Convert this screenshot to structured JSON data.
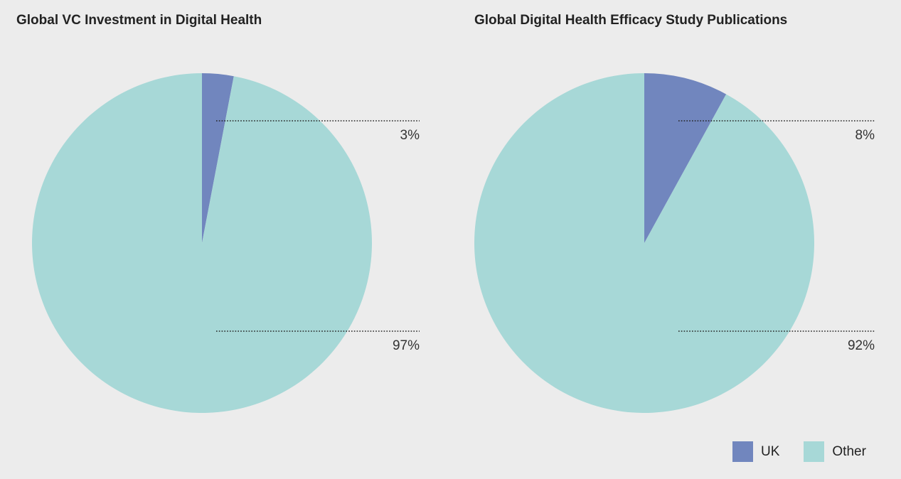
{
  "chart_data": [
    {
      "type": "pie",
      "title": "Global VC Investment in Digital Health",
      "slices": [
        {
          "label": "UK",
          "value": 3,
          "display": "3%"
        },
        {
          "label": "Other",
          "value": 97,
          "display": "97%"
        }
      ]
    },
    {
      "type": "pie",
      "title": "Global Digital Health Efficacy Study Publications",
      "slices": [
        {
          "label": "UK",
          "value": 8,
          "display": "8%"
        },
        {
          "label": "Other",
          "value": 92,
          "display": "92%"
        }
      ]
    }
  ],
  "legend": {
    "placement": "bottom-right",
    "items": [
      {
        "label": "UK",
        "color": "#7186be"
      },
      {
        "label": "Other",
        "color": "#a7d8d7"
      }
    ]
  },
  "colors": {
    "background": "#ececec",
    "uk": "#7186be",
    "other": "#a7d8d7"
  }
}
